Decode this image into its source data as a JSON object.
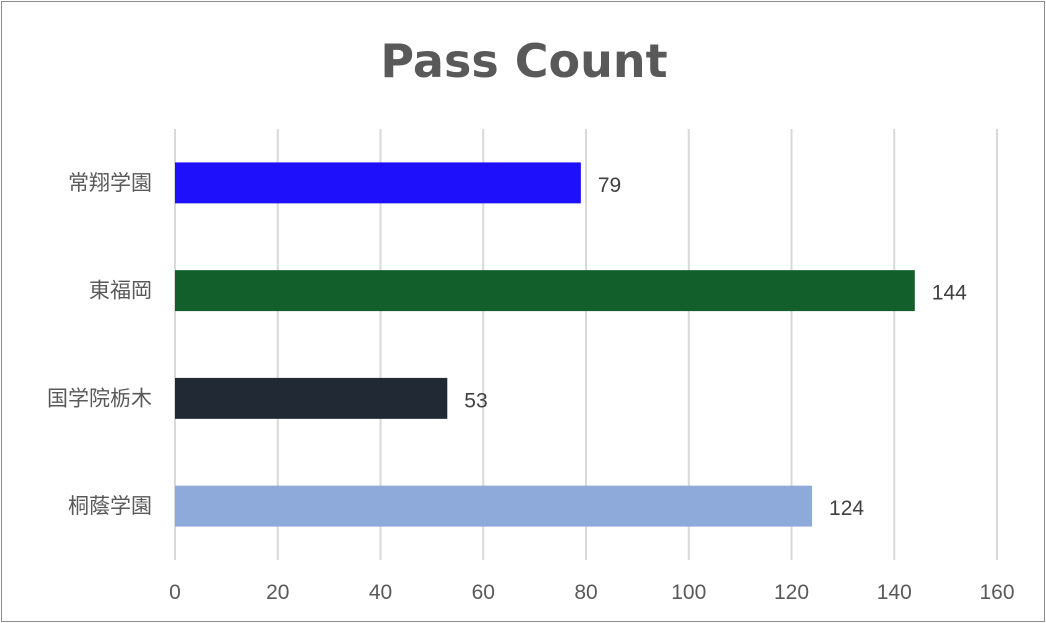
{
  "chart_data": {
    "type": "bar",
    "orientation": "horizontal",
    "title": "Pass Count",
    "xlabel": "",
    "ylabel": "",
    "categories": [
      "常翔学園",
      "東福岡",
      "国学院栃木",
      "桐蔭学園"
    ],
    "values": [
      79,
      144,
      53,
      124
    ],
    "colors": [
      "#1f10fb",
      "#125f2b",
      "#212935",
      "#8eaadb"
    ],
    "xlim": [
      0,
      160
    ],
    "xticks": [
      0,
      20,
      40,
      60,
      80,
      100,
      120,
      140,
      160
    ],
    "grid": true,
    "legend": "none",
    "data_labels": true
  }
}
